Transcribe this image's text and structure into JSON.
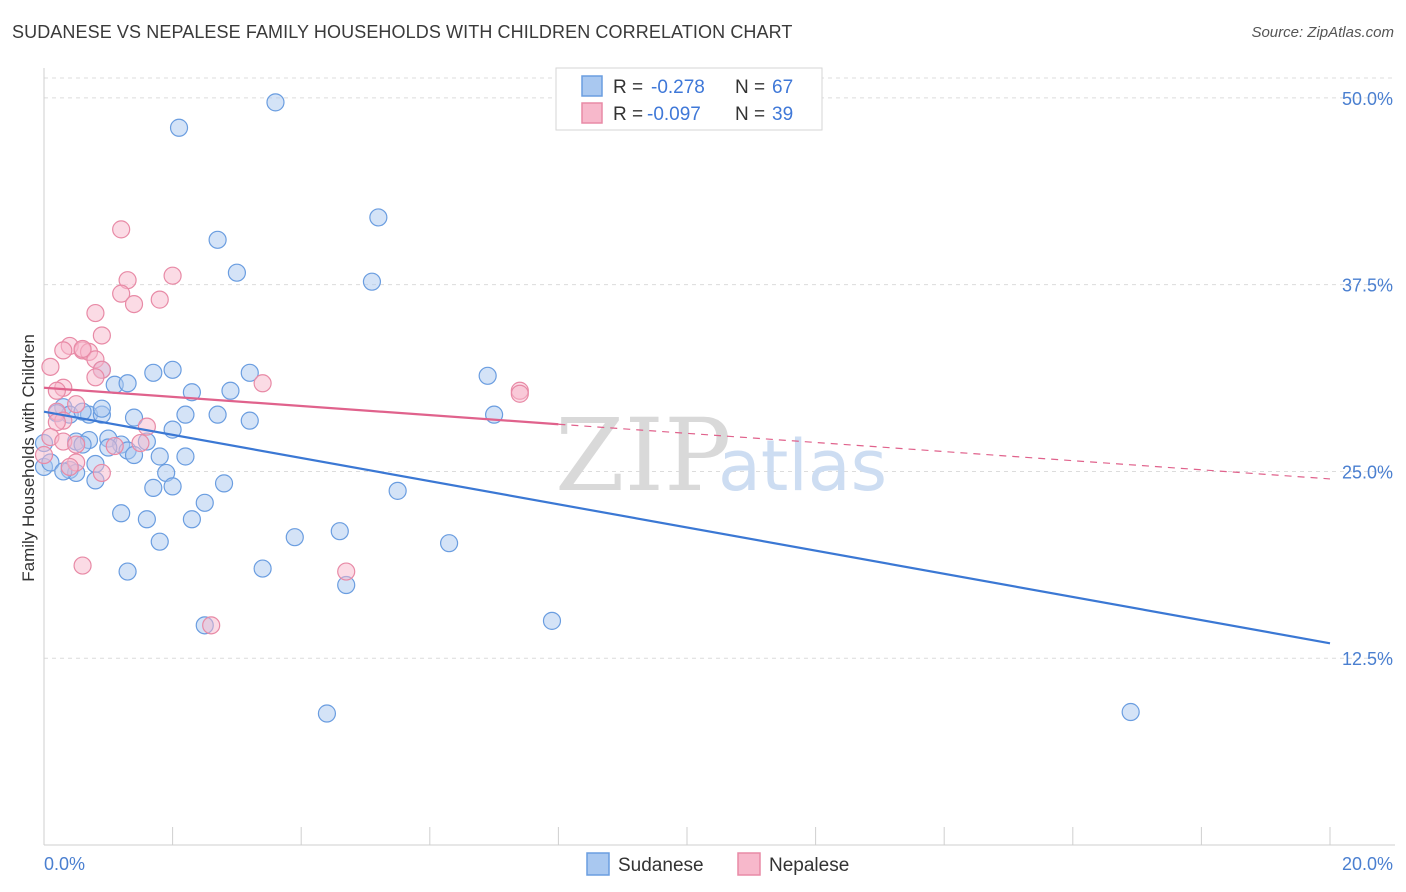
{
  "header": {
    "title": "SUDANESE VS NEPALESE FAMILY HOUSEHOLDS WITH CHILDREN CORRELATION CHART",
    "source": "Source: ZipAtlas.com"
  },
  "legend": {
    "sudanese": {
      "r_label": "R =",
      "r_value": "-0.278",
      "n_label": "N =",
      "n_value": "67"
    },
    "nepalese": {
      "r_label": "R =",
      "r_value": "-0.097",
      "n_label": "N =",
      "n_value": "39"
    }
  },
  "watermark": {
    "zip": "ZIP",
    "atlas": "atlas"
  },
  "colors": {
    "sudanese_fill": "#a9c8f0",
    "sudanese_stroke": "#6a9de0",
    "sudanese_line": "#3b78d4",
    "nepalese_fill": "#f7b8cb",
    "nepalese_stroke": "#e88aa6",
    "nepalese_line": "#e0628c",
    "tick_text": "#4a7fd0",
    "grid": "#dcdcdc"
  },
  "chart_data": {
    "type": "scatter",
    "title": "SUDANESE VS NEPALESE FAMILY HOUSEHOLDS WITH CHILDREN CORRELATION CHART",
    "xlabel": "",
    "ylabel": "Family Households with Children",
    "xlim": [
      0,
      20
    ],
    "ylim": [
      0,
      52
    ],
    "x_ticks": [
      {
        "v": 0,
        "label": "0.0%"
      },
      {
        "v": 20,
        "label": "20.0%"
      }
    ],
    "x_minor_ticks": [
      0,
      2,
      4,
      6,
      8,
      10,
      12,
      14,
      16,
      18,
      20
    ],
    "y_ticks": [
      {
        "v": 12.5,
        "label": "12.5%"
      },
      {
        "v": 25,
        "label": "25.0%"
      },
      {
        "v": 37.5,
        "label": "37.5%"
      },
      {
        "v": 50,
        "label": "50.0%"
      }
    ],
    "grid": true,
    "legend_placement": "top-center",
    "series": [
      {
        "name": "Sudanese",
        "trend": {
          "x0": 0,
          "y0": 29.0,
          "x1": 20,
          "y1": 13.5,
          "dashed_from": null
        },
        "points": [
          [
            3.6,
            49.7
          ],
          [
            2.1,
            48.0
          ],
          [
            5.2,
            42.0
          ],
          [
            2.7,
            40.5
          ],
          [
            3.0,
            38.3
          ],
          [
            5.1,
            37.7
          ],
          [
            0.9,
            31.8
          ],
          [
            1.7,
            31.6
          ],
          [
            2.0,
            31.8
          ],
          [
            3.2,
            31.6
          ],
          [
            1.1,
            30.8
          ],
          [
            1.3,
            30.9
          ],
          [
            2.3,
            30.3
          ],
          [
            2.9,
            30.4
          ],
          [
            6.9,
            31.4
          ],
          [
            0.3,
            29.3
          ],
          [
            0.4,
            28.8
          ],
          [
            0.7,
            28.8
          ],
          [
            0.9,
            28.8
          ],
          [
            1.4,
            28.6
          ],
          [
            2.2,
            28.8
          ],
          [
            2.7,
            28.8
          ],
          [
            3.2,
            28.4
          ],
          [
            0.2,
            28.9
          ],
          [
            2.0,
            27.8
          ],
          [
            0.5,
            27.0
          ],
          [
            0.7,
            27.1
          ],
          [
            1.0,
            27.2
          ],
          [
            1.2,
            26.8
          ],
          [
            1.6,
            27.0
          ],
          [
            1.0,
            26.6
          ],
          [
            1.3,
            26.4
          ],
          [
            1.4,
            26.1
          ],
          [
            1.8,
            26.0
          ],
          [
            2.2,
            26.0
          ],
          [
            0.0,
            26.9
          ],
          [
            0.0,
            25.3
          ],
          [
            0.4,
            25.1
          ],
          [
            0.5,
            24.9
          ],
          [
            0.8,
            25.5
          ],
          [
            0.8,
            24.4
          ],
          [
            1.9,
            24.9
          ],
          [
            7.0,
            28.8
          ],
          [
            1.7,
            23.9
          ],
          [
            2.0,
            24.0
          ],
          [
            2.8,
            24.2
          ],
          [
            2.5,
            22.9
          ],
          [
            5.5,
            23.7
          ],
          [
            1.2,
            22.2
          ],
          [
            1.6,
            21.8
          ],
          [
            2.3,
            21.8
          ],
          [
            4.6,
            21.0
          ],
          [
            3.9,
            20.6
          ],
          [
            1.8,
            20.3
          ],
          [
            6.3,
            20.2
          ],
          [
            3.4,
            18.5
          ],
          [
            1.3,
            18.3
          ],
          [
            4.7,
            17.4
          ],
          [
            7.9,
            15.0
          ],
          [
            2.5,
            14.7
          ],
          [
            4.4,
            8.8
          ],
          [
            16.9,
            8.9
          ],
          [
            0.1,
            25.6
          ],
          [
            0.3,
            25.0
          ],
          [
            0.6,
            26.8
          ],
          [
            0.9,
            29.2
          ],
          [
            0.6,
            29.0
          ]
        ]
      },
      {
        "name": "Nepalese",
        "trend": {
          "x0": 0,
          "y0": 30.6,
          "x1": 20,
          "y1": 24.5,
          "dashed_from": 8.0
        },
        "points": [
          [
            1.2,
            41.2
          ],
          [
            1.3,
            37.8
          ],
          [
            2.0,
            38.1
          ],
          [
            1.2,
            36.9
          ],
          [
            1.8,
            36.5
          ],
          [
            0.8,
            35.6
          ],
          [
            1.4,
            36.2
          ],
          [
            0.9,
            34.1
          ],
          [
            0.4,
            33.4
          ],
          [
            0.3,
            33.1
          ],
          [
            0.6,
            33.1
          ],
          [
            0.7,
            33.0
          ],
          [
            0.8,
            32.5
          ],
          [
            0.1,
            32.0
          ],
          [
            0.9,
            31.8
          ],
          [
            0.8,
            31.3
          ],
          [
            0.3,
            30.6
          ],
          [
            3.4,
            30.9
          ],
          [
            0.2,
            30.4
          ],
          [
            7.4,
            30.4
          ],
          [
            7.4,
            30.2
          ],
          [
            0.5,
            29.5
          ],
          [
            0.2,
            29.0
          ],
          [
            0.3,
            28.4
          ],
          [
            0.2,
            28.3
          ],
          [
            1.6,
            28.0
          ],
          [
            0.1,
            27.3
          ],
          [
            0.3,
            27.0
          ],
          [
            0.5,
            26.8
          ],
          [
            1.1,
            26.7
          ],
          [
            0.0,
            26.1
          ],
          [
            0.5,
            25.6
          ],
          [
            0.4,
            25.3
          ],
          [
            0.9,
            24.9
          ],
          [
            0.6,
            18.7
          ],
          [
            4.7,
            18.3
          ],
          [
            2.6,
            14.7
          ],
          [
            0.6,
            33.2
          ],
          [
            1.5,
            26.9
          ]
        ]
      }
    ]
  },
  "bottom_legend": {
    "sudanese": "Sudanese",
    "nepalese": "Nepalese"
  }
}
